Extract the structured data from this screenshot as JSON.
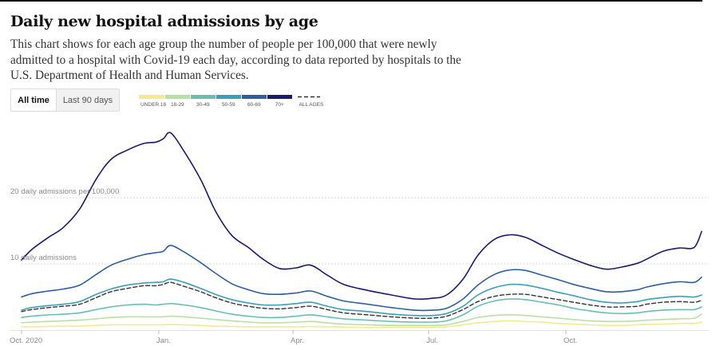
{
  "header": {
    "title": "Daily new hospital admissions by age",
    "description": "This chart shows for each age group the number of people per 100,000 that were newly admitted to a hospital with Covid-19 each day, according to data reported by hospitals to the U.S. Department of Health and Human Services."
  },
  "toggle": {
    "options": [
      {
        "label": "All time",
        "active": true
      },
      {
        "label": "Last 90 days",
        "active": false
      }
    ]
  },
  "legend": {
    "items": [
      {
        "label": "UNDER 18",
        "color": "#f6e88c"
      },
      {
        "label": "18-29",
        "color": "#b9dfa9"
      },
      {
        "label": "30-49",
        "color": "#69bfad"
      },
      {
        "label": "50-59",
        "color": "#3a9eb9"
      },
      {
        "label": "60-69",
        "color": "#2b5f9f"
      },
      {
        "label": "70+",
        "color": "#1b1b6d"
      }
    ],
    "all_ages_label": "ALL AGES",
    "all_ages_color": "#333333"
  },
  "chart_data": {
    "type": "line",
    "title": "Daily new hospital admissions by age",
    "xlabel": "",
    "ylabel": "Daily admissions per 100,000",
    "x_unit": "days since Oct. 1, 2020",
    "xlim": [
      0,
      456
    ],
    "ylim": [
      0,
      30
    ],
    "grid": true,
    "gridlines": [
      {
        "value": 10,
        "label": "10 daily admissions"
      },
      {
        "value": 20,
        "label": "20 daily admissions per 100,000"
      }
    ],
    "x_ticks": [
      {
        "day": 0,
        "label": "Oct. 2020"
      },
      {
        "day": 92,
        "label": "Jan."
      },
      {
        "day": 182,
        "label": "Apr."
      },
      {
        "day": 273,
        "label": "Jul."
      },
      {
        "day": 365,
        "label": "Oct."
      }
    ],
    "legend_position": "top",
    "x": [
      0,
      7,
      18,
      28,
      39,
      50,
      60,
      71,
      82,
      90,
      95,
      100,
      109,
      120,
      130,
      141,
      152,
      162,
      173,
      184,
      194,
      205,
      216,
      232,
      248,
      264,
      275,
      285,
      296,
      306,
      317,
      328,
      338,
      349,
      360,
      370,
      381,
      392,
      402,
      413,
      419,
      430,
      441,
      451,
      456
    ],
    "series": [
      {
        "name": "70+",
        "color": "#1b1b6d",
        "dashed": false,
        "values": [
          10.6,
          12.2,
          14.0,
          15.5,
          18.3,
          22.8,
          25.8,
          27.2,
          28.2,
          28.4,
          28.9,
          29.8,
          27.0,
          22.8,
          18.0,
          14.3,
          12.5,
          10.7,
          9.3,
          9.4,
          9.8,
          8.3,
          6.9,
          6.0,
          5.3,
          4.7,
          4.8,
          5.3,
          7.7,
          11.3,
          13.7,
          14.4,
          14.0,
          12.8,
          11.6,
          10.7,
          9.8,
          9.2,
          9.5,
          10.1,
          10.7,
          11.9,
          12.4,
          12.5,
          14.9
        ]
      },
      {
        "name": "60-69",
        "color": "#2b5f9f",
        "dashed": false,
        "values": [
          5.0,
          5.5,
          5.9,
          6.2,
          6.8,
          8.4,
          9.8,
          10.7,
          11.4,
          11.7,
          11.9,
          12.8,
          11.8,
          10.2,
          8.6,
          7.0,
          6.1,
          5.5,
          5.4,
          5.6,
          5.9,
          5.1,
          4.4,
          3.9,
          3.4,
          3.0,
          3.0,
          3.3,
          4.7,
          6.8,
          8.4,
          9.1,
          9.0,
          8.3,
          7.6,
          6.9,
          6.3,
          5.8,
          5.8,
          6.1,
          6.5,
          7.0,
          7.3,
          7.2,
          8.0
        ]
      },
      {
        "name": "50-59",
        "color": "#3a9eb9",
        "dashed": false,
        "values": [
          3.0,
          3.4,
          3.7,
          3.9,
          4.3,
          5.4,
          6.2,
          6.8,
          7.1,
          7.2,
          7.3,
          7.7,
          7.2,
          6.3,
          5.4,
          4.6,
          4.1,
          3.8,
          3.8,
          4.0,
          4.2,
          3.6,
          3.1,
          2.8,
          2.4,
          2.2,
          2.2,
          2.5,
          3.6,
          5.3,
          6.4,
          6.9,
          6.8,
          6.3,
          5.7,
          5.2,
          4.6,
          4.2,
          4.1,
          4.3,
          4.6,
          4.9,
          5.1,
          5.0,
          5.3
        ]
      },
      {
        "name": "All ages",
        "color": "#333333",
        "dashed": true,
        "values": [
          2.8,
          3.1,
          3.4,
          3.6,
          3.9,
          4.9,
          5.8,
          6.3,
          6.7,
          6.7,
          6.9,
          7.2,
          6.6,
          5.8,
          4.9,
          4.1,
          3.6,
          3.3,
          3.2,
          3.4,
          3.6,
          3.1,
          2.6,
          2.3,
          2.0,
          1.8,
          1.8,
          2.1,
          3.1,
          4.3,
          5.1,
          5.4,
          5.4,
          5.0,
          4.6,
          4.2,
          3.8,
          3.5,
          3.5,
          3.6,
          3.9,
          4.2,
          4.3,
          4.2,
          4.5
        ]
      },
      {
        "name": "30-49",
        "color": "#69bfad",
        "dashed": false,
        "values": [
          1.9,
          2.1,
          2.3,
          2.4,
          2.6,
          3.1,
          3.5,
          3.8,
          3.9,
          3.8,
          3.9,
          4.0,
          3.8,
          3.4,
          2.9,
          2.4,
          2.1,
          1.9,
          1.9,
          2.1,
          2.3,
          2.0,
          1.7,
          1.5,
          1.3,
          1.2,
          1.2,
          1.4,
          2.3,
          3.6,
          4.4,
          4.7,
          4.6,
          4.2,
          3.8,
          3.3,
          2.9,
          2.6,
          2.5,
          2.6,
          2.8,
          3.0,
          3.1,
          3.1,
          3.5
        ]
      },
      {
        "name": "18-29",
        "color": "#b9dfa9",
        "dashed": false,
        "values": [
          1.1,
          1.2,
          1.3,
          1.4,
          1.5,
          1.7,
          1.9,
          2.0,
          2.0,
          2.0,
          2.0,
          2.1,
          2.0,
          1.8,
          1.6,
          1.4,
          1.2,
          1.1,
          1.1,
          1.2,
          1.3,
          1.1,
          0.9,
          0.8,
          0.7,
          0.7,
          0.7,
          0.8,
          1.3,
          1.9,
          2.2,
          2.3,
          2.2,
          2.0,
          1.8,
          1.6,
          1.4,
          1.3,
          1.3,
          1.4,
          1.5,
          1.6,
          1.7,
          1.8,
          2.4
        ]
      },
      {
        "name": "Under 18",
        "color": "#f6e88c",
        "dashed": false,
        "values": [
          0.5,
          0.5,
          0.55,
          0.6,
          0.6,
          0.7,
          0.8,
          0.8,
          0.8,
          0.8,
          0.8,
          0.85,
          0.8,
          0.7,
          0.6,
          0.55,
          0.5,
          0.5,
          0.5,
          0.5,
          0.55,
          0.5,
          0.45,
          0.4,
          0.4,
          0.4,
          0.4,
          0.5,
          0.8,
          1.1,
          1.3,
          1.4,
          1.3,
          1.2,
          1.0,
          0.9,
          0.8,
          0.7,
          0.7,
          0.8,
          0.85,
          0.9,
          1.0,
          1.0,
          1.2
        ]
      }
    ]
  }
}
